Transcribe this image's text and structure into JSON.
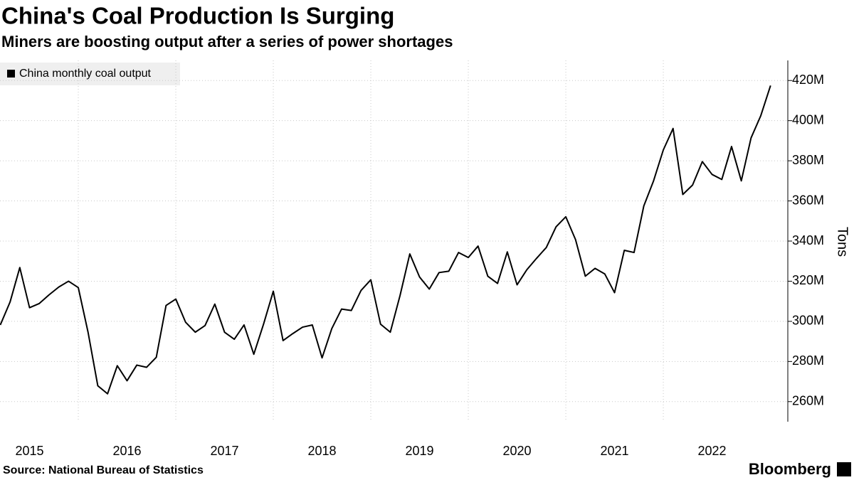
{
  "chart_data": {
    "type": "line",
    "title": "China's Coal Production Is Surging",
    "subtitle": "Miners are boosting output after a series of power shortages",
    "y_label": "Tons",
    "source": "Source: National Bureau of Statistics",
    "brand": "Bloomberg",
    "x": [
      2015.2,
      2015.3,
      2015.4,
      2015.5,
      2015.6,
      2015.7,
      2015.8,
      2015.9,
      2016.0,
      2016.1,
      2016.2,
      2016.3,
      2016.4,
      2016.5,
      2016.6,
      2016.7,
      2016.8,
      2016.9,
      2017.0,
      2017.1,
      2017.2,
      2017.3,
      2017.4,
      2017.5,
      2017.6,
      2017.7,
      2017.8,
      2017.9,
      2018.0,
      2018.1,
      2018.2,
      2018.3,
      2018.4,
      2018.5,
      2018.6,
      2018.7,
      2018.8,
      2018.9,
      2019.0,
      2019.1,
      2019.2,
      2019.3,
      2019.4,
      2019.5,
      2019.6,
      2019.7,
      2019.8,
      2019.9,
      2020.0,
      2020.1,
      2020.2,
      2020.3,
      2020.4,
      2020.5,
      2020.6,
      2020.7,
      2020.8,
      2020.9,
      2021.0,
      2021.1,
      2021.2,
      2021.3,
      2021.4,
      2021.5,
      2021.6,
      2021.7,
      2021.8,
      2021.9,
      2022.0,
      2022.1,
      2022.2,
      2022.3,
      2022.4,
      2022.5,
      2022.6,
      2022.7,
      2022.8,
      2022.9,
      2023.0,
      2023.1
    ],
    "series": [
      {
        "name": "China monthly coal output",
        "color": "#000000",
        "values": [
          298200000,
          309600000,
          326800000,
          306800000,
          308900000,
          313200000,
          317100000,
          320000000,
          316800000,
          294600000,
          267900000,
          263900000,
          277900000,
          270400000,
          278200000,
          277100000,
          282100000,
          307900000,
          311100000,
          299600000,
          294600000,
          297900000,
          308600000,
          294600000,
          291100000,
          298200000,
          283600000,
          298600000,
          315000000,
          290400000,
          293900000,
          297100000,
          298200000,
          281800000,
          296400000,
          306100000,
          305400000,
          315400000,
          320700000,
          298600000,
          294600000,
          312900000,
          333600000,
          322100000,
          316100000,
          324300000,
          325000000,
          334300000,
          331800000,
          337500000,
          322500000,
          318900000,
          334600000,
          318200000,
          325700000,
          331400000,
          336800000,
          347100000,
          352100000,
          340700000,
          322500000,
          326400000,
          323600000,
          314300000,
          335400000,
          334300000,
          357500000,
          370000000,
          385400000,
          396100000,
          363200000,
          367900000,
          379600000,
          373200000,
          370700000,
          387100000,
          370000000,
          391400000,
          402500000,
          417500000
        ]
      }
    ],
    "xlim": [
      2015.197,
      2023.277
    ],
    "xticks": [
      {
        "value": 2015,
        "label": "2015"
      },
      {
        "value": 2016,
        "label": "2016"
      },
      {
        "value": 2017,
        "label": "2017"
      },
      {
        "value": 2018,
        "label": "2018"
      },
      {
        "value": 2019,
        "label": "2019"
      },
      {
        "value": 2020,
        "label": "2020"
      },
      {
        "value": 2021,
        "label": "2021"
      },
      {
        "value": 2022,
        "label": "2022"
      }
    ],
    "ylim": [
      250000000,
      430000000
    ],
    "yticks": [
      {
        "value": 260000000,
        "label": "260M"
      },
      {
        "value": 280000000,
        "label": "280M"
      },
      {
        "value": 300000000,
        "label": "300M"
      },
      {
        "value": 320000000,
        "label": "320M"
      },
      {
        "value": 340000000,
        "label": "340M"
      },
      {
        "value": 360000000,
        "label": "360M"
      },
      {
        "value": 380000000,
        "label": "380M"
      },
      {
        "value": 400000000,
        "label": "400M"
      },
      {
        "value": 420000000,
        "label": "420M"
      }
    ],
    "grid": true,
    "legend": "top-left"
  }
}
